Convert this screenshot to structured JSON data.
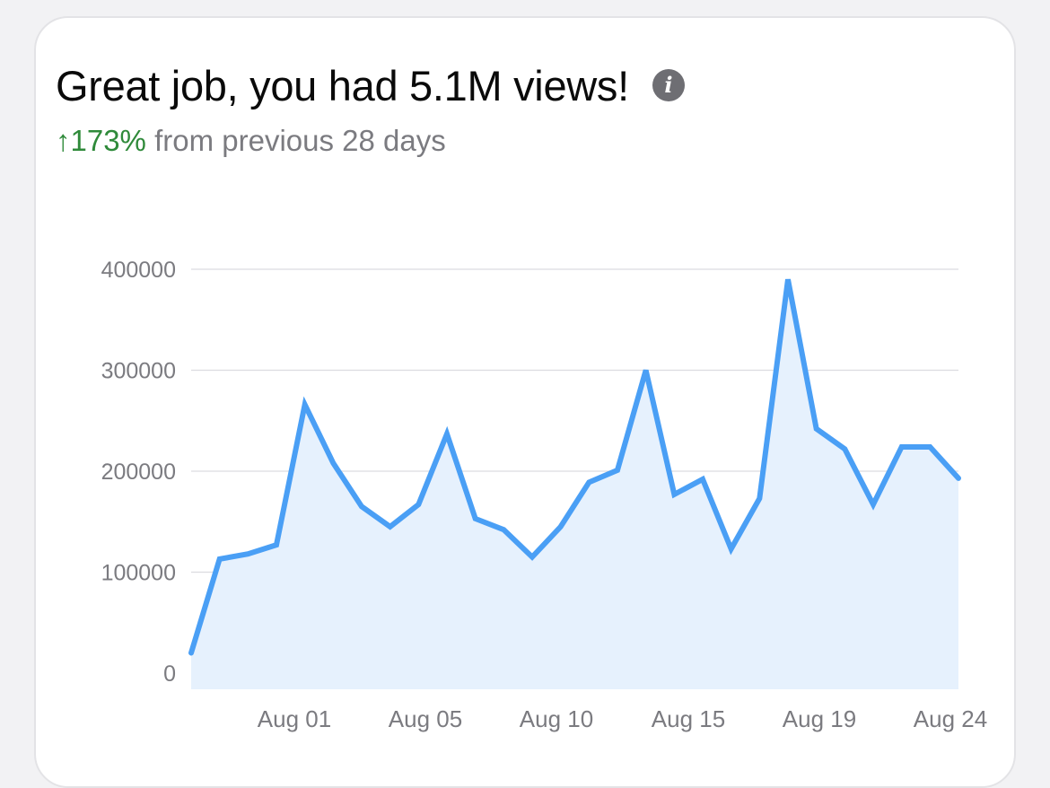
{
  "header": {
    "title": "Great job, you had 5.1M views!",
    "change": "↑173%",
    "change_suffix": " from previous 28 days"
  },
  "colors": {
    "line": "#4a9ff5",
    "fill": "#e6f1fd",
    "grid": "#dcdce0",
    "positive": "#2f8a3a"
  },
  "chart_data": {
    "type": "area",
    "title": "",
    "xlabel": "",
    "ylabel": "",
    "ylim": [
      0,
      400000
    ],
    "yticks": [
      0,
      100000,
      200000,
      300000,
      400000
    ],
    "xticks": [
      "Aug 01",
      "Aug 05",
      "Aug 10",
      "Aug 15",
      "Aug 19",
      "Aug 24"
    ],
    "grid": true,
    "series": [
      {
        "values": [
          20000,
          113000,
          118000,
          127000,
          266000,
          208000,
          165000,
          145000,
          167000,
          237000,
          153000,
          142000,
          115000,
          145000,
          189000,
          201000,
          300000,
          177000,
          192000,
          123000,
          173000,
          390000,
          242000,
          222000,
          167000,
          224000,
          224000,
          193000
        ]
      }
    ]
  }
}
